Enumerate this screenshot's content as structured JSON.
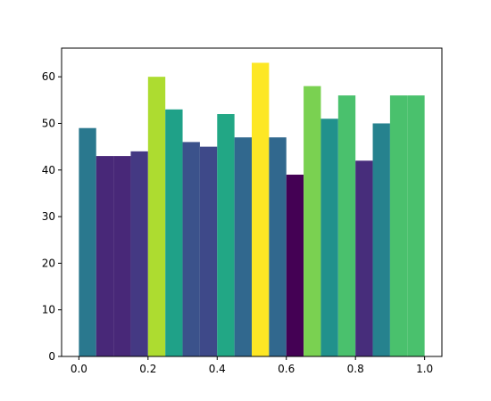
{
  "chart_data": {
    "type": "bar",
    "title": "",
    "xlabel": "",
    "ylabel": "",
    "xlim": [
      -0.05,
      1.05
    ],
    "ylim": [
      0,
      66.15
    ],
    "grid": false,
    "bars": [
      {
        "x0": 0.0,
        "x1": 0.05,
        "value": 49,
        "color": "#2a788e"
      },
      {
        "x0": 0.05,
        "x1": 0.1,
        "value": 43,
        "color": "#482878"
      },
      {
        "x0": 0.1,
        "x1": 0.15,
        "value": 43,
        "color": "#482878"
      },
      {
        "x0": 0.15,
        "x1": 0.2,
        "value": 44,
        "color": "#443983"
      },
      {
        "x0": 0.2,
        "x1": 0.25,
        "value": 60,
        "color": "#addc30"
      },
      {
        "x0": 0.25,
        "x1": 0.3,
        "value": 53,
        "color": "#1fa188"
      },
      {
        "x0": 0.3,
        "x1": 0.35,
        "value": 46,
        "color": "#3b528b"
      },
      {
        "x0": 0.35,
        "x1": 0.4,
        "value": 45,
        "color": "#3e4989"
      },
      {
        "x0": 0.4,
        "x1": 0.45,
        "value": 52,
        "color": "#22a785"
      },
      {
        "x0": 0.45,
        "x1": 0.5,
        "value": 47,
        "color": "#31688e"
      },
      {
        "x0": 0.5,
        "x1": 0.55,
        "value": 63,
        "color": "#fde725"
      },
      {
        "x0": 0.55,
        "x1": 0.6,
        "value": 47,
        "color": "#31688e"
      },
      {
        "x0": 0.6,
        "x1": 0.65,
        "value": 39,
        "color": "#440154"
      },
      {
        "x0": 0.65,
        "x1": 0.7,
        "value": 58,
        "color": "#7ad151"
      },
      {
        "x0": 0.7,
        "x1": 0.75,
        "value": 51,
        "color": "#21918c"
      },
      {
        "x0": 0.75,
        "x1": 0.8,
        "value": 56,
        "color": "#4ac16d"
      },
      {
        "x0": 0.8,
        "x1": 0.85,
        "value": 42,
        "color": "#472d7b"
      },
      {
        "x0": 0.85,
        "x1": 0.9,
        "value": 50,
        "color": "#26828e"
      },
      {
        "x0": 0.9,
        "x1": 0.95,
        "value": 56,
        "color": "#4ac16d"
      },
      {
        "x0": 0.95,
        "x1": 1.0,
        "value": 56,
        "color": "#4ac16d"
      }
    ],
    "xticks": [
      {
        "value": 0.0,
        "label": "0.0"
      },
      {
        "value": 0.2,
        "label": "0.2"
      },
      {
        "value": 0.4,
        "label": "0.4"
      },
      {
        "value": 0.6,
        "label": "0.6"
      },
      {
        "value": 0.8,
        "label": "0.8"
      },
      {
        "value": 1.0,
        "label": "1.0"
      }
    ],
    "yticks": [
      {
        "value": 0,
        "label": "0"
      },
      {
        "value": 10,
        "label": "10"
      },
      {
        "value": 20,
        "label": "20"
      },
      {
        "value": 30,
        "label": "30"
      },
      {
        "value": 40,
        "label": "40"
      },
      {
        "value": 50,
        "label": "50"
      },
      {
        "value": 60,
        "label": "60"
      }
    ]
  }
}
